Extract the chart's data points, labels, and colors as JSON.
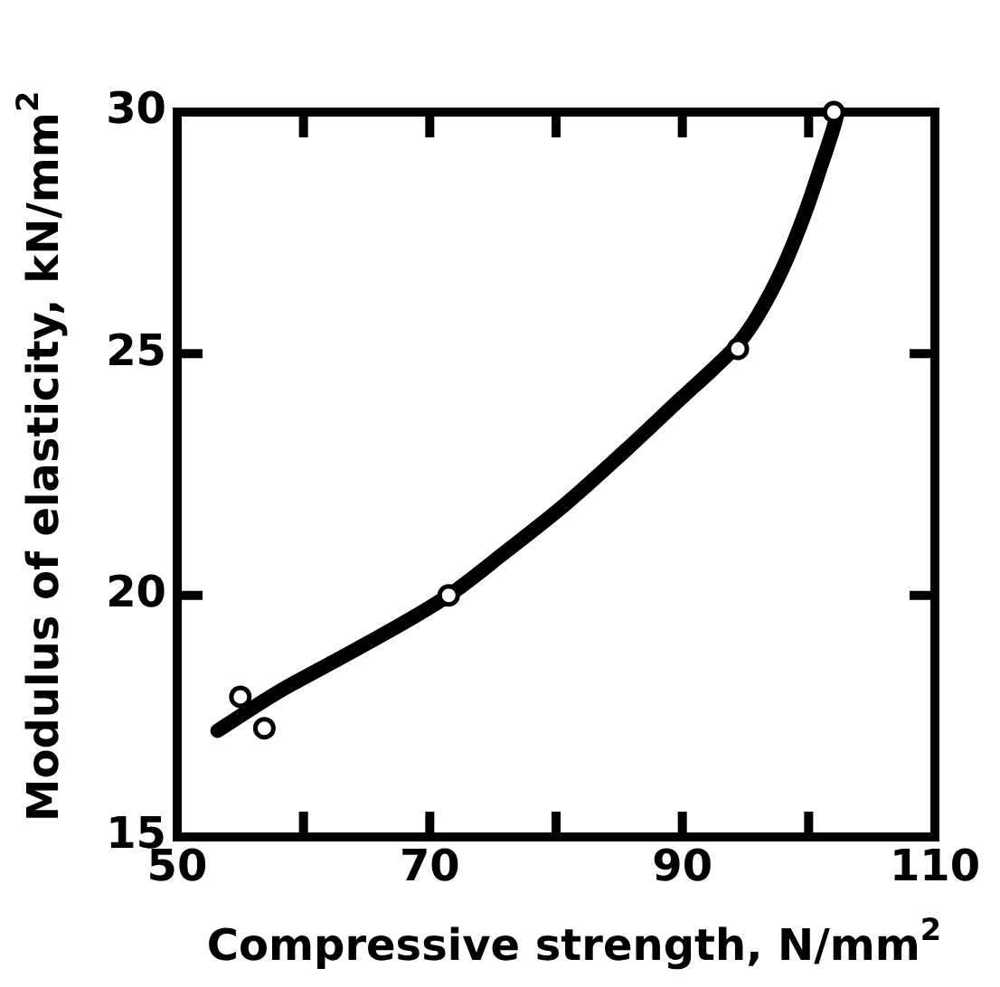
{
  "chart_data": {
    "type": "scatter",
    "xlabel": "Compressive strength, N/mm$^{2}$",
    "ylabel": "Modulus of elasticity, kN/mm$^{2}$",
    "xlim": [
      50,
      110
    ],
    "ylim": [
      15,
      30
    ],
    "xticks": [
      50,
      {
        "value": 60,
        "label": null
      },
      70,
      {
        "value": 80,
        "label": null
      },
      90,
      {
        "value": 100,
        "label": null
      },
      110
    ],
    "yticks": [
      15,
      20,
      25,
      30
    ],
    "grid": false,
    "legend": false,
    "series": [
      {
        "type": "scatter",
        "color": "#000000",
        "marker": "circle",
        "x": [
          55.0,
          56.9,
          71.5,
          94.4,
          102.0
        ],
        "values": [
          17.9,
          17.25,
          20.0,
          25.1,
          30.0
        ]
      },
      {
        "type": "line",
        "color": "#000000",
        "line_style": "solid",
        "marker": "none",
        "x": [
          53.2,
          58.0,
          63.6,
          71.5,
          76.0,
          80.8,
          85.5,
          90.0,
          92.5,
          94.4,
          96.0,
          98.0,
          99.7,
          101.0,
          102.0,
          102.3
        ],
        "values": [
          17.2,
          18.0,
          18.8,
          20.0,
          20.9,
          21.9,
          23.0,
          24.1,
          24.7,
          25.2,
          25.8,
          26.8,
          27.9,
          28.9,
          29.7,
          30.0
        ]
      }
    ]
  }
}
